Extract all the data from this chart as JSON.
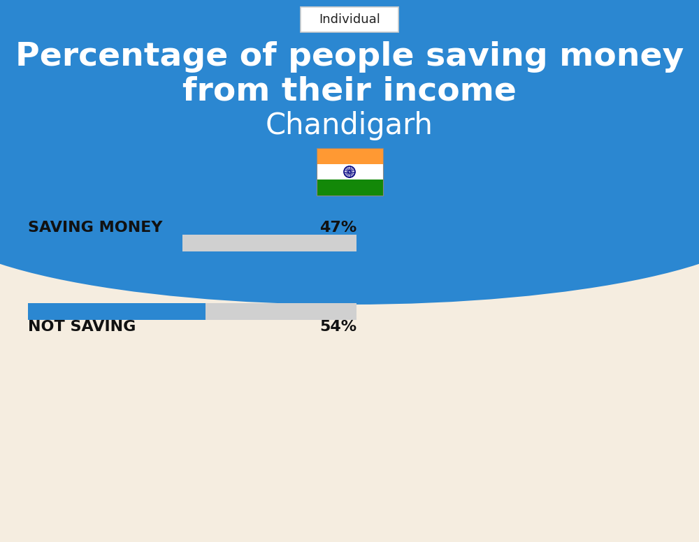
{
  "title_line1": "Percentage of people saving money",
  "title_line2": "from their income",
  "subtitle": "Chandigarh",
  "tag_label": "Individual",
  "bg_top_color": "#2B87D1",
  "bg_bottom_color": "#F5EDE0",
  "title_color": "#FFFFFF",
  "subtitle_color": "#FFFFFF",
  "bar_label1": "SAVING MONEY",
  "bar_value1": 47,
  "bar_text1": "47%",
  "bar_label2": "NOT SAVING",
  "bar_value2": 54,
  "bar_text2": "54%",
  "bar_filled_color": "#2B87D1",
  "bar_bg_color": "#D0D0D0",
  "label_color": "#111111",
  "tag_bg": "#FFFFFF",
  "tag_border_color": "#CCCCCC",
  "tag_text_color": "#222222",
  "flag_saffron": "#FF9933",
  "flag_white": "#FFFFFF",
  "flag_green": "#138808",
  "flag_navy": "#000080"
}
